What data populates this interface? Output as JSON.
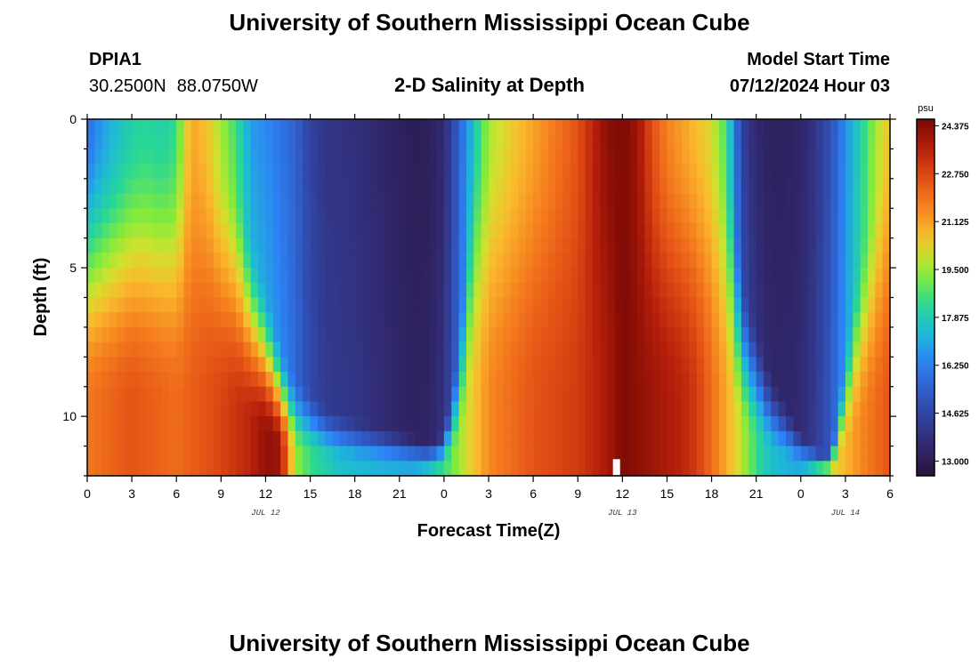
{
  "header": {
    "title": "University of Southern Mississippi Ocean Cube",
    "station_id": "DPIA1",
    "latitude": "30.2500N",
    "longitude": "88.0750W",
    "plot_title": "2-D Salinity at Depth",
    "model_start_label": "Model Start Time",
    "model_start_value": "07/12/2024 Hour 03"
  },
  "footer": {
    "title": "University of Southern Mississippi Ocean Cube"
  },
  "chart_data": {
    "type": "heatmap",
    "title": "2-D Salinity at Depth",
    "xlabel": "Forecast Time(Z)",
    "ylabel": "Depth (ft)",
    "x_ticks": [
      "0",
      "3",
      "6",
      "9",
      "12",
      "15",
      "18",
      "21",
      "0",
      "3",
      "6",
      "9",
      "12",
      "15",
      "18",
      "21",
      "0",
      "3",
      "6"
    ],
    "x_range_hours": [
      0,
      54
    ],
    "date_labels": [
      {
        "text": "JUL 12",
        "hour": 12
      },
      {
        "text": "JUL 13",
        "hour": 36
      },
      {
        "text": "JUL 14",
        "hour": 51
      }
    ],
    "y_range": [
      0,
      12
    ],
    "y_ticks": [
      0,
      5,
      10
    ],
    "colorbar": {
      "unit": "psu",
      "min": 12.5,
      "max": 24.6,
      "tick_labels": [
        "24.375",
        "22.750",
        "21.125",
        "19.500",
        "17.875",
        "16.250",
        "14.625",
        "13.000"
      ]
    },
    "surface_profile": {
      "hours": [
        0,
        1,
        2,
        3,
        4,
        5,
        6,
        6.5,
        7,
        8,
        9,
        10,
        11,
        12,
        13,
        14,
        15,
        16,
        17,
        18,
        19,
        20,
        21,
        22,
        23,
        24,
        25,
        26,
        27,
        28,
        29,
        30,
        31,
        32,
        33,
        34,
        35,
        36,
        37,
        38,
        39,
        40,
        41,
        42,
        43,
        43.5,
        44,
        45,
        46,
        47,
        48,
        49,
        50,
        51,
        52,
        53,
        54
      ],
      "psu": [
        15.5,
        16.5,
        17.2,
        17.8,
        18.0,
        17.8,
        18.2,
        19.8,
        21.0,
        20.5,
        19.5,
        18.5,
        16.8,
        16.5,
        16.0,
        15.5,
        14.5,
        14.0,
        13.9,
        13.8,
        13.6,
        13.4,
        13.2,
        13.0,
        13.1,
        13.6,
        15.5,
        17.5,
        19.5,
        20.0,
        20.5,
        21.0,
        21.5,
        22.0,
        22.5,
        23.5,
        24.3,
        24.5,
        24.0,
        22.5,
        21.5,
        21.0,
        20.5,
        20.0,
        18.5,
        16.5,
        14.5,
        13.5,
        13.2,
        13.2,
        13.4,
        14.0,
        15.0,
        16.5,
        18.0,
        19.5,
        20.5
      ]
    },
    "deep_profile": {
      "depth_ft": 12,
      "hours": [
        0,
        3,
        6,
        9,
        11,
        12,
        13,
        14,
        15,
        17,
        20,
        22,
        23,
        24,
        25,
        26,
        27,
        30,
        33,
        35,
        36,
        38,
        40,
        41,
        43,
        44,
        45,
        46,
        48,
        49,
        50,
        52,
        54
      ],
      "psu": [
        21.8,
        22.5,
        22.0,
        22.8,
        23.5,
        24.2,
        24.0,
        19.5,
        18.5,
        17.5,
        17.2,
        17.0,
        17.5,
        18.5,
        19.5,
        20.5,
        21.5,
        22.5,
        23.0,
        23.8,
        24.5,
        24.0,
        23.5,
        23.0,
        21.0,
        19.8,
        18.5,
        17.5,
        17.0,
        18.0,
        20.0,
        21.5,
        22.5
      ]
    },
    "mixing_depth": {
      "hours": [
        0,
        8,
        10,
        12,
        13,
        14,
        16,
        18,
        20,
        22,
        23,
        24,
        25,
        26,
        30,
        40,
        43,
        44,
        46,
        48,
        50,
        52,
        54
      ],
      "depth_ft": [
        0,
        0,
        1.5,
        5.5,
        7.5,
        8.6,
        9.5,
        10.0,
        10.3,
        10.6,
        10.8,
        10.5,
        7.5,
        0,
        0,
        0,
        0,
        5.0,
        8.5,
        10.5,
        11.5,
        4.0,
        0
      ]
    },
    "marker": {
      "hour": 35.6,
      "depth_ft": 11.5
    }
  }
}
